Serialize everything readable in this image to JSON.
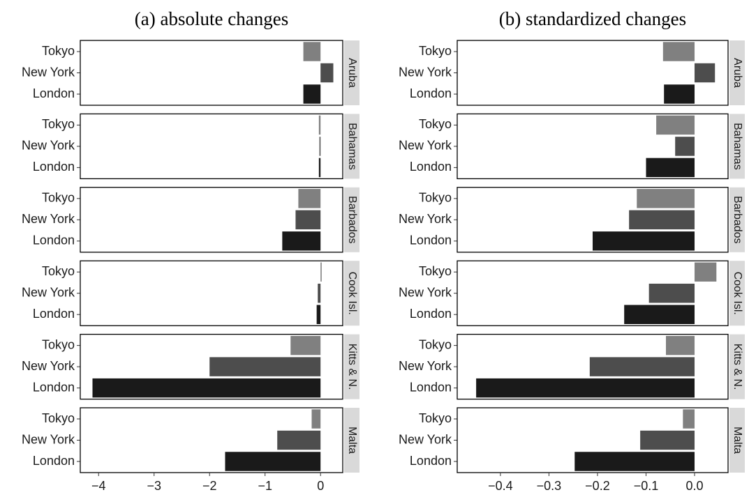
{
  "chart_data": [
    {
      "type": "bar",
      "title": "(a) absolute changes",
      "categories": [
        "Tokyo",
        "New York",
        "London"
      ],
      "colors": [
        "#808080",
        "#4d4d4d",
        "#1a1a1a"
      ],
      "panels": [
        {
          "name": "Aruba",
          "values": [
            -0.31,
            0.23,
            -0.31
          ]
        },
        {
          "name": "Bahamas",
          "values": [
            -0.03,
            -0.02,
            -0.03
          ]
        },
        {
          "name": "Barbados",
          "values": [
            -0.4,
            -0.45,
            -0.69
          ]
        },
        {
          "name": "Cook Isl.",
          "values": [
            0.02,
            -0.05,
            -0.07
          ]
        },
        {
          "name": "Kitts & N.",
          "values": [
            -0.54,
            -2.0,
            -4.11
          ]
        },
        {
          "name": "Malta",
          "values": [
            -0.16,
            -0.78,
            -1.72
          ]
        }
      ],
      "xlim": [
        -4.33,
        0.4
      ],
      "xticks": [
        {
          "value": -4,
          "label": "−4"
        },
        {
          "value": -3,
          "label": "−3"
        },
        {
          "value": -2,
          "label": "−2"
        },
        {
          "value": -1,
          "label": "−1"
        },
        0
      ]
    },
    {
      "type": "bar",
      "title": "(b) standardized changes",
      "categories": [
        "Tokyo",
        "New York",
        "London"
      ],
      "colors": [
        "#808080",
        "#4d4d4d",
        "#1a1a1a"
      ],
      "panels": [
        {
          "name": "Aruba",
          "values": [
            -0.065,
            0.042,
            -0.063
          ]
        },
        {
          "name": "Bahamas",
          "values": [
            -0.079,
            -0.04,
            -0.1
          ]
        },
        {
          "name": "Barbados",
          "values": [
            -0.119,
            -0.135,
            -0.21
          ]
        },
        {
          "name": "Cook Isl.",
          "values": [
            0.045,
            -0.094,
            -0.145
          ]
        },
        {
          "name": "Kitts & N.",
          "values": [
            -0.059,
            -0.216,
            -0.45
          ]
        },
        {
          "name": "Malta",
          "values": [
            -0.024,
            -0.112,
            -0.247
          ]
        }
      ],
      "xlim": [
        -0.489,
        0.069
      ],
      "xticks": [
        {
          "value": -0.4,
          "label": "−0.4"
        },
        {
          "value": -0.3,
          "label": "−0.3"
        },
        {
          "value": -0.2,
          "label": "−0.2"
        },
        {
          "value": -0.1,
          "label": "−0.1"
        },
        {
          "value": 0,
          "label": "0.0"
        }
      ]
    }
  ]
}
